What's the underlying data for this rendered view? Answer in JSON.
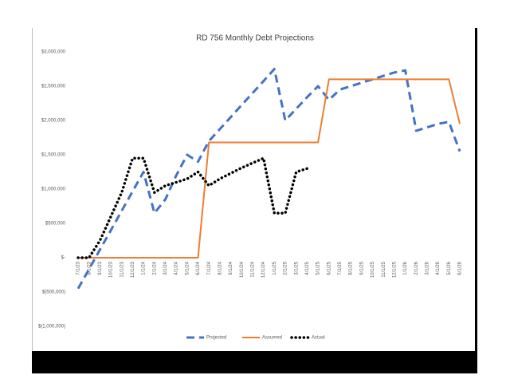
{
  "chart_data": {
    "type": "line",
    "title": "RD 756 Monthly Debt Projections",
    "categories": [
      "7/1/23",
      "8/1/23",
      "9/1/23",
      "10/1/23",
      "11/1/23",
      "12/1/23",
      "1/1/24",
      "2/1/24",
      "3/1/24",
      "4/1/24",
      "5/1/24",
      "6/1/24",
      "7/1/24",
      "8/1/24",
      "9/1/24",
      "10/1/24",
      "11/1/24",
      "12/1/24",
      "1/1/25",
      "2/1/25",
      "3/1/25",
      "4/1/25",
      "5/1/25",
      "6/1/25",
      "7/1/25",
      "8/1/25",
      "9/1/25",
      "10/1/25",
      "11/1/25",
      "12/1/25",
      "1/1/26",
      "2/1/26",
      "3/1/26",
      "4/1/26",
      "5/1/26",
      "6/1/26"
    ],
    "series": [
      {
        "name": "Projected",
        "color": "#4472c4",
        "style": "dashed",
        "values": [
          -450000,
          -167000,
          117000,
          400000,
          683000,
          967000,
          1250000,
          650000,
          850000,
          1200000,
          1500000,
          1400000,
          1700000,
          1875000,
          2050000,
          2225000,
          2400000,
          2575000,
          2750000,
          2000000,
          2170000,
          2340000,
          2500000,
          2300000,
          2450000,
          2500000,
          2550000,
          2600000,
          2650000,
          2700000,
          2730000,
          1850000,
          1900000,
          1950000,
          1980000,
          1550000
        ]
      },
      {
        "name": "Assumed",
        "color": "#ed7d31",
        "style": "solid",
        "values": [
          0,
          0,
          0,
          0,
          0,
          0,
          0,
          0,
          0,
          0,
          0,
          0,
          1680000,
          1680000,
          1680000,
          1680000,
          1680000,
          1680000,
          1680000,
          1680000,
          1680000,
          1680000,
          1680000,
          2600000,
          2600000,
          2600000,
          2600000,
          2600000,
          2600000,
          2600000,
          2600000,
          2600000,
          2600000,
          2600000,
          2600000,
          1950000
        ]
      },
      {
        "name": "Actual",
        "color": "#000000",
        "style": "dotted",
        "values": [
          0,
          0,
          250000,
          600000,
          950000,
          1450000,
          1450000,
          950000,
          1050000,
          1100000,
          1150000,
          1250000,
          1050000,
          1150000,
          1230000,
          1310000,
          1380000,
          1450000,
          650000,
          650000,
          1250000,
          1300000,
          null,
          null,
          null,
          null,
          null,
          null,
          null,
          null,
          null,
          null,
          null,
          null,
          null,
          null
        ]
      }
    ],
    "ylim": [
      -1000000,
      3000000
    ],
    "yticks": [
      {
        "value": -1000000,
        "label": "$(1,000,000)"
      },
      {
        "value": -500000,
        "label": "$(500,000)"
      },
      {
        "value": 0,
        "label": "$-"
      },
      {
        "value": 500000,
        "label": "$500,000"
      },
      {
        "value": 1000000,
        "label": "$1,000,000"
      },
      {
        "value": 1500000,
        "label": "$1,500,000"
      },
      {
        "value": 2000000,
        "label": "$2,000,000"
      },
      {
        "value": 2500000,
        "label": "$2,500,000"
      },
      {
        "value": 3000000,
        "label": "$3,000,000"
      }
    ],
    "legend": "bottom",
    "grid": false
  }
}
